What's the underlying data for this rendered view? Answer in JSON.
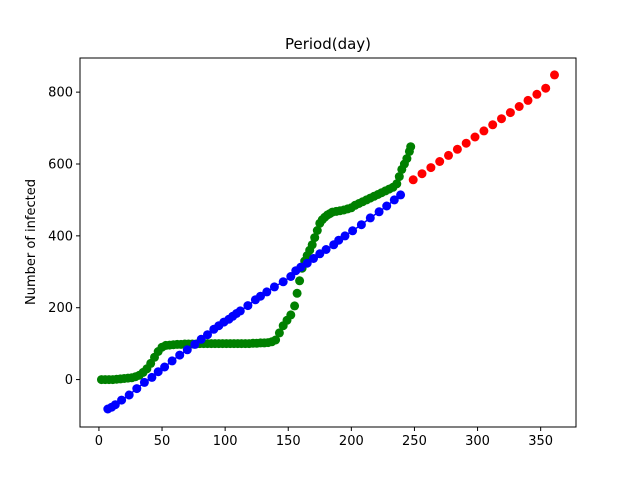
{
  "chart_data": {
    "type": "scatter",
    "title": "Period(day)",
    "xlabel": "",
    "ylabel": "Number of infected",
    "xlim": [
      -15,
      378
    ],
    "ylim": [
      -132,
      895
    ],
    "xticks": [
      0,
      50,
      100,
      150,
      200,
      250,
      300,
      350
    ],
    "yticks": [
      0,
      200,
      400,
      600,
      800
    ],
    "grid": false,
    "legend": "none",
    "series": [
      {
        "color": "#008000",
        "marker": "circle",
        "x": [
          2,
          5,
          8,
          11,
          14,
          17,
          20,
          23,
          26,
          29,
          32,
          35,
          38,
          41,
          44,
          47,
          50,
          53,
          56,
          59,
          62,
          65,
          68,
          71,
          74,
          77,
          80,
          83,
          86,
          89,
          92,
          95,
          98,
          101,
          104,
          107,
          110,
          113,
          116,
          119,
          122,
          125,
          128,
          131,
          134,
          137,
          140,
          143,
          146,
          149,
          152,
          155,
          157,
          159,
          161,
          163,
          165,
          167,
          169,
          171,
          173,
          175,
          177,
          179,
          181,
          183,
          185,
          188,
          191,
          194,
          197,
          200,
          203,
          206,
          209,
          212,
          215,
          218,
          221,
          224,
          227,
          230,
          233,
          236,
          238,
          240,
          242,
          244,
          246,
          247
        ],
        "y": [
          0,
          0,
          0,
          0,
          1,
          2,
          3,
          4,
          5,
          8,
          12,
          20,
          30,
          45,
          62,
          78,
          90,
          95,
          96,
          97,
          98,
          98,
          99,
          99,
          99,
          99,
          100,
          100,
          100,
          100,
          100,
          100,
          100,
          100,
          100,
          100,
          100,
          100,
          100,
          100,
          101,
          101,
          102,
          102,
          103,
          105,
          110,
          130,
          150,
          165,
          180,
          205,
          240,
          275,
          310,
          330,
          345,
          360,
          375,
          395,
          415,
          435,
          445,
          452,
          458,
          462,
          466,
          468,
          470,
          472,
          475,
          478,
          485,
          490,
          495,
          500,
          505,
          510,
          515,
          520,
          525,
          530,
          535,
          545,
          565,
          585,
          600,
          615,
          635,
          648
        ]
      },
      {
        "color": "#0000ff",
        "marker": "circle",
        "line": true,
        "x": [
          7,
          10,
          13,
          18,
          24,
          30,
          36,
          42,
          47,
          52,
          58,
          64,
          70,
          76,
          81,
          86,
          91,
          95,
          99,
          103,
          106,
          109,
          112,
          118,
          124,
          128,
          133,
          139,
          146,
          152,
          156,
          160,
          165,
          170,
          175,
          180,
          186,
          190,
          195,
          201,
          208,
          215,
          222,
          228,
          234,
          239
        ],
        "y": [
          -82,
          -77,
          -70,
          -57,
          -43,
          -25,
          -8,
          6,
          22,
          35,
          52,
          68,
          83,
          98,
          112,
          125,
          140,
          150,
          160,
          168,
          176,
          184,
          191,
          206,
          222,
          232,
          244,
          258,
          272,
          287,
          303,
          313,
          324,
          337,
          350,
          362,
          375,
          388,
          400,
          414,
          431,
          450,
          467,
          483,
          500,
          514
        ]
      },
      {
        "color": "#ff0000",
        "marker": "circle",
        "x": [
          249,
          256,
          263,
          270,
          277,
          284,
          291,
          298,
          305,
          312,
          319,
          326,
          333,
          340,
          347,
          354,
          361
        ],
        "y": [
          556,
          573,
          590,
          607,
          624,
          641,
          658,
          675,
          692,
          709,
          726,
          743,
          760,
          777,
          794,
          811,
          848
        ]
      }
    ]
  }
}
